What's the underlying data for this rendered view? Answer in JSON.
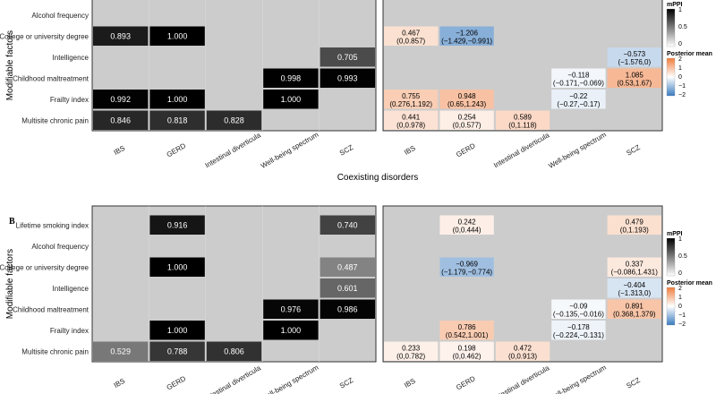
{
  "chart_data": [
    {
      "type": "heatmap",
      "panel": "",
      "clipped_top": true,
      "xlabel": "Coexisting disorders",
      "ylabel": "Modifiable factors",
      "rows": [
        "Alcohol frequency",
        "College or university degree",
        "Intelligence",
        "Childhood maltreatment",
        "Frailty index",
        "Multisite chronic pain"
      ],
      "columns": [
        "IBS",
        "GERD",
        "Intestinal diverticula",
        "Well-being spectrum",
        "SCZ"
      ],
      "mppi": [
        [
          null,
          null,
          null,
          null,
          null
        ],
        [
          0.893,
          1.0,
          null,
          null,
          null
        ],
        [
          null,
          null,
          null,
          null,
          0.705
        ],
        [
          null,
          null,
          null,
          0.998,
          0.993
        ],
        [
          0.992,
          1.0,
          null,
          1.0,
          null
        ],
        [
          0.846,
          0.818,
          0.828,
          null,
          null
        ]
      ],
      "posterior_mean": [
        [
          null,
          null,
          null,
          null,
          null
        ],
        [
          {
            "mean": "0.467",
            "ci": "(0,0.857)"
          },
          {
            "mean": "−1.206",
            "ci": "(−1.429,−0.991)"
          },
          null,
          null,
          null
        ],
        [
          null,
          null,
          null,
          null,
          {
            "mean": "−0.573",
            "ci": "(−1.576,0)"
          }
        ],
        [
          null,
          null,
          null,
          {
            "mean": "−0.118",
            "ci": "(−0.171,−0.069)"
          },
          {
            "mean": "1.085",
            "ci": "(0.53,1.67)"
          }
        ],
        [
          {
            "mean": "0.755",
            "ci": "(0.276,1.192)"
          },
          {
            "mean": "0.948",
            "ci": "(0.65,1.243)"
          },
          null,
          {
            "mean": "−0.22",
            "ci": "(−0.27,−0.17)"
          },
          null
        ],
        [
          {
            "mean": "0.441",
            "ci": "(0,0.978)"
          },
          {
            "mean": "0.254",
            "ci": "(0,0.577)"
          },
          {
            "mean": "0.589",
            "ci": "(0,1.118)"
          },
          null,
          null
        ]
      ]
    },
    {
      "type": "heatmap",
      "panel": "B",
      "clipped_top": false,
      "xlabel": "",
      "ylabel": "Modifiable factors",
      "rows": [
        "Lifetime smoking index",
        "Alcohol frequency",
        "College or university degree",
        "Intelligence",
        "Childhood maltreatment",
        "Frailty index",
        "Multisite chronic pain"
      ],
      "columns": [
        "IBS",
        "GERD",
        "Intestinal diverticula",
        "Well-being spectrum",
        "SCZ"
      ],
      "mppi": [
        [
          null,
          0.916,
          null,
          null,
          0.74
        ],
        [
          null,
          null,
          null,
          null,
          null
        ],
        [
          null,
          1.0,
          null,
          null,
          0.487
        ],
        [
          null,
          null,
          null,
          null,
          0.601
        ],
        [
          null,
          null,
          null,
          0.976,
          0.986
        ],
        [
          null,
          1.0,
          null,
          1.0,
          null
        ],
        [
          0.529,
          0.788,
          0.806,
          null,
          null
        ]
      ],
      "posterior_mean": [
        [
          null,
          {
            "mean": "0.242",
            "ci": "(0,0.444)"
          },
          null,
          null,
          {
            "mean": "0.479",
            "ci": "(0,1.193)"
          }
        ],
        [
          null,
          null,
          null,
          null,
          null
        ],
        [
          null,
          {
            "mean": "−0.969",
            "ci": "(−1.179,−0.774)"
          },
          null,
          null,
          {
            "mean": "0.337",
            "ci": "(−0.086,1.431)"
          }
        ],
        [
          null,
          null,
          null,
          null,
          {
            "mean": "−0.404",
            "ci": "(−1.313,0)"
          }
        ],
        [
          null,
          null,
          null,
          {
            "mean": "−0.09",
            "ci": "(−0.135,−0.016)"
          },
          {
            "mean": "0.891",
            "ci": "(0.368,1.379)"
          }
        ],
        [
          null,
          {
            "mean": "0.786",
            "ci": "(0.542,1.001)"
          },
          null,
          {
            "mean": "−0.178",
            "ci": "(−0.224,−0.131)"
          },
          null
        ],
        [
          {
            "mean": "0.233",
            "ci": "(0,0.782)"
          },
          {
            "mean": "0.198",
            "ci": "(0,0.462)"
          },
          {
            "mean": "0.472",
            "ci": "(0,0.913)"
          },
          null,
          null
        ]
      ]
    }
  ],
  "legends": {
    "mppi": {
      "title": "mPPI",
      "ticks": [
        "1",
        "0.5",
        "0"
      ],
      "colors": [
        "#000000",
        "#ffffff"
      ]
    },
    "posterior_mean": {
      "title": "Posterior mean",
      "ticks": [
        "2",
        "1",
        "0",
        "−1",
        "−2"
      ],
      "colors": [
        "#f07d3c",
        "#ffffff",
        "#3a7bbf"
      ]
    }
  },
  "colors": {
    "panel_bg": "#cccccc",
    "grid": "#ffffff",
    "na": "#cccccc"
  }
}
